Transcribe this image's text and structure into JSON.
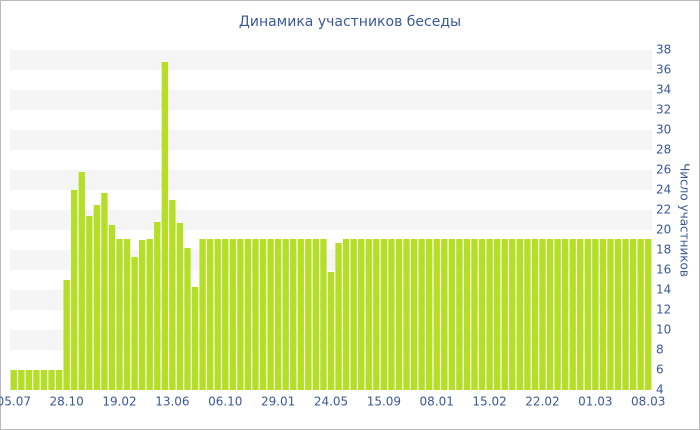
{
  "chart_data": {
    "type": "bar",
    "title": "Динамика участников беседы",
    "y_axis_label": "Число участников",
    "categories": [
      "05.07",
      null,
      null,
      null,
      null,
      null,
      null,
      "28.10",
      null,
      null,
      null,
      null,
      null,
      null,
      "19.02",
      null,
      null,
      null,
      null,
      null,
      null,
      "13.06",
      null,
      null,
      null,
      null,
      null,
      null,
      "06.10",
      null,
      null,
      null,
      null,
      null,
      null,
      "29.01",
      null,
      null,
      null,
      null,
      null,
      null,
      "24.05",
      null,
      null,
      null,
      null,
      null,
      null,
      "15.09",
      null,
      null,
      null,
      null,
      null,
      null,
      "08.01",
      null,
      null,
      null,
      null,
      null,
      null,
      "15.02",
      null,
      null,
      null,
      null,
      null,
      null,
      "22.02",
      null,
      null,
      null,
      null,
      null,
      null,
      "01.03",
      null,
      null,
      null,
      null,
      null,
      null,
      "08.03"
    ],
    "values": [
      6,
      6,
      6,
      6,
      6,
      6,
      6,
      15,
      24,
      25.8,
      21.4,
      22.5,
      23.7,
      20.5,
      19.1,
      19.1,
      17.3,
      19,
      19.1,
      20.8,
      36.8,
      23,
      20.7,
      18.2,
      14.3,
      19.1,
      19.1,
      19.1,
      19.1,
      19.1,
      19.1,
      19.1,
      19.1,
      19.1,
      19.1,
      19.1,
      19.1,
      19.1,
      19.1,
      19.1,
      19.1,
      19.1,
      15.8,
      18.7,
      19.1,
      19.1,
      19.1,
      19.1,
      19.1,
      19.1,
      19.1,
      19.1,
      19.1,
      19.1,
      19.1,
      19.1,
      19.1,
      19.1,
      19.1,
      19.1,
      19.1,
      19.1,
      19.1,
      19.1,
      19.1,
      19.1,
      19.1,
      19.1,
      19.1,
      19.1,
      19.1,
      19.1,
      19.1,
      19.1,
      19.1,
      19.1,
      19.1,
      19.1,
      19.1,
      19.1,
      19.1,
      19.1,
      19.1,
      19.1,
      19.1
    ],
    "color": "#b5df26",
    "ylim": [
      4,
      38
    ],
    "yticks": [
      4,
      6,
      8,
      10,
      12,
      14,
      16,
      18,
      20,
      22,
      24,
      26,
      28,
      30,
      32,
      34,
      36,
      38
    ],
    "y_axis_side": "right",
    "grid": "bands"
  }
}
